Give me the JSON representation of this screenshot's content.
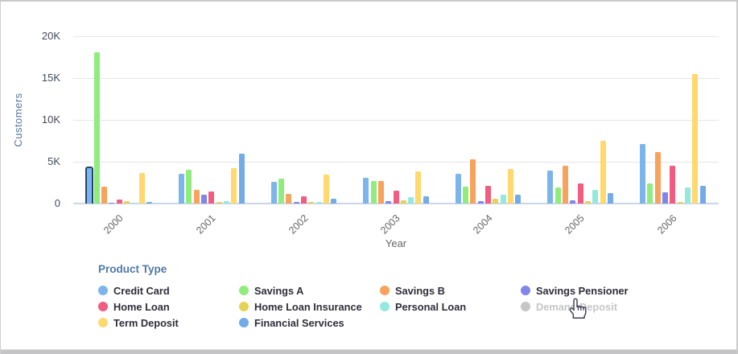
{
  "chart_data": {
    "type": "bar",
    "title": "",
    "xlabel": "Year",
    "ylabel": "Customers",
    "categories": [
      "2000",
      "2001",
      "2002",
      "2003",
      "2004",
      "2005",
      "2006"
    ],
    "y_ticks": [
      {
        "label": "0",
        "value": 0
      },
      {
        "label": "5K",
        "value": 5000
      },
      {
        "label": "10K",
        "value": 10000
      },
      {
        "label": "15K",
        "value": 15000
      },
      {
        "label": "20K",
        "value": 20000
      }
    ],
    "ylim": [
      0,
      20000
    ],
    "grid": true,
    "legend_title": "Product Type",
    "legend_position": "bottom",
    "series": [
      {
        "name": "Credit Card",
        "color": "#7CB5EC",
        "disabled": false,
        "values": [
          4400,
          3600,
          2600,
          3100,
          3600,
          3900,
          7100
        ]
      },
      {
        "name": "Savings A",
        "color": "#90ED7D",
        "disabled": false,
        "values": [
          18100,
          4000,
          3000,
          2700,
          2000,
          1900,
          2400
        ]
      },
      {
        "name": "Savings B",
        "color": "#F7A35C",
        "disabled": false,
        "values": [
          2000,
          1600,
          1200,
          2700,
          5300,
          4500,
          6200
        ]
      },
      {
        "name": "Savings Pensioner",
        "color": "#8085E9",
        "disabled": false,
        "values": [
          50,
          1100,
          200,
          300,
          300,
          400,
          1300
        ]
      },
      {
        "name": "Home Loan",
        "color": "#F15C80",
        "disabled": false,
        "values": [
          450,
          1400,
          900,
          1500,
          2100,
          2400,
          4500
        ]
      },
      {
        "name": "Home Loan Insurance",
        "color": "#E4D354",
        "disabled": false,
        "values": [
          250,
          200,
          200,
          400,
          600,
          300,
          160
        ]
      },
      {
        "name": "Personal Loan",
        "color": "#94E9DF",
        "disabled": false,
        "values": [
          50,
          300,
          200,
          750,
          1100,
          1600,
          1900
        ]
      },
      {
        "name": "Demand Deposit",
        "color": "#C6C6C6",
        "disabled": true,
        "values": []
      },
      {
        "name": "Term Deposit",
        "color": "#FFD86E",
        "disabled": false,
        "values": [
          3700,
          4200,
          3500,
          3850,
          4150,
          7500,
          15500
        ]
      },
      {
        "name": "Financial Services",
        "color": "#72ABE8",
        "disabled": false,
        "values": [
          150,
          6000,
          600,
          900,
          1100,
          1250,
          2100
        ]
      }
    ],
    "selected_bar": {
      "series": "Credit Card",
      "category": "2000",
      "border_color": "#24466E"
    }
  },
  "ui": {
    "cursor": "hand-pointer-icon",
    "colors": {
      "gridline": "#E6E6E6",
      "zero_axis": "#CCD6EB",
      "y_tick_text": "#444A5C",
      "x_tick_text": "#666666",
      "y_title_text": "#54779F",
      "legend_title_text": "#4E78A8",
      "legend_item_text": "#2E2E3B",
      "legend_item_disabled_text": "#C6C6C6"
    }
  }
}
